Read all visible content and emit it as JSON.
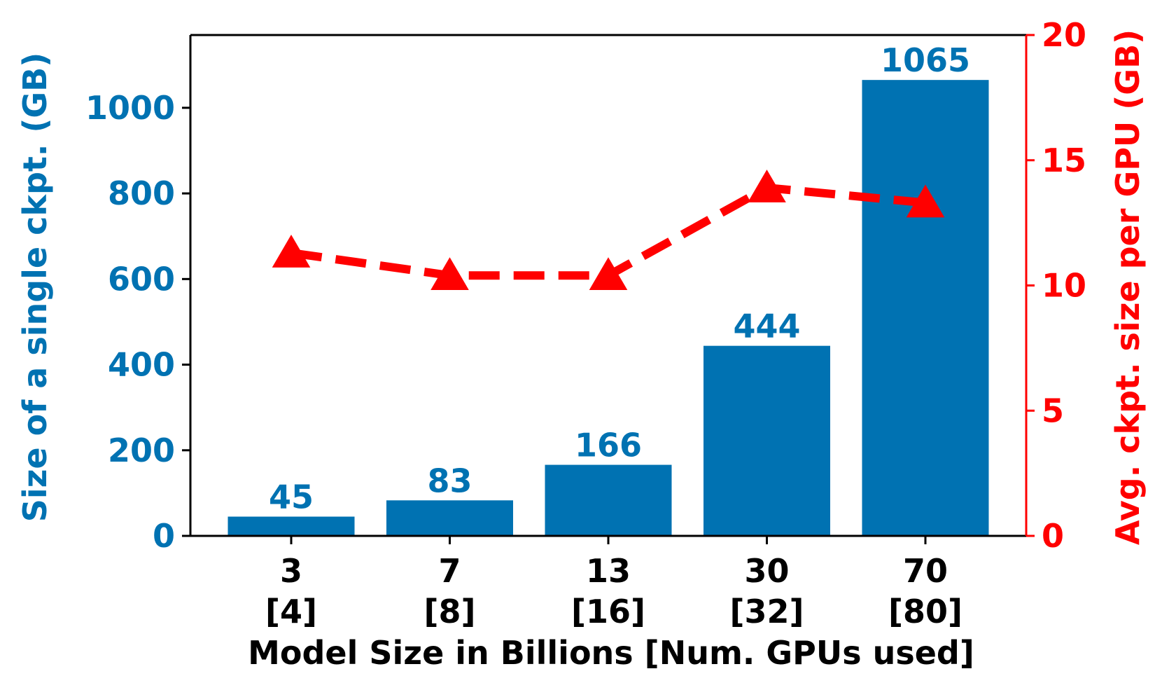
{
  "chart_data": {
    "type": "bar",
    "categories": [
      "3",
      "7",
      "13",
      "30",
      "70"
    ],
    "category_sublabels": [
      "[4]",
      "[8]",
      "[16]",
      "[32]",
      "[80]"
    ],
    "xlabel": "Model Size in Billions [Num. GPUs used]",
    "ylabel": "Size of a single ckpt. (GB)",
    "ylim": [
      0,
      1170
    ],
    "yticks": [
      0,
      200,
      400,
      600,
      800,
      1000
    ],
    "y2label": "Avg. ckpt. size per GPU (GB)",
    "y2lim": [
      0,
      20
    ],
    "y2ticks": [
      0,
      5,
      10,
      15,
      20
    ],
    "series": [
      {
        "type": "bar",
        "axis": "left",
        "values": [
          45,
          83,
          166,
          444,
          1065
        ],
        "data_labels": [
          "45",
          "83",
          "166",
          "444",
          "1065"
        ],
        "color": "#0072b2"
      },
      {
        "type": "line",
        "axis": "right",
        "values": [
          11.3,
          10.4,
          10.4,
          13.9,
          13.3
        ],
        "marker": "triangle",
        "line_style": "dashed",
        "color": "#ff0000"
      }
    ],
    "grid": false
  }
}
